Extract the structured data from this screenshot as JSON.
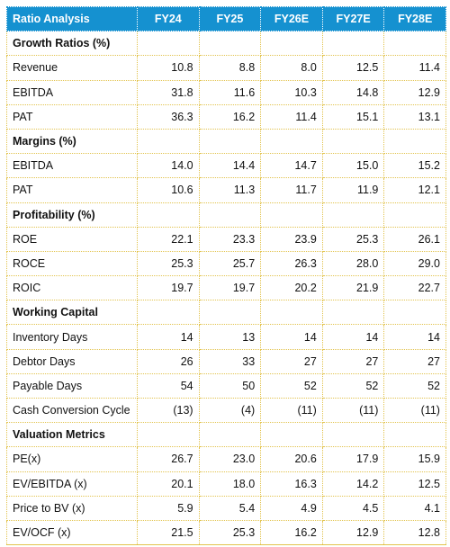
{
  "table": {
    "title": "Ratio Analysis",
    "columns": [
      "FY24",
      "FY25",
      "FY26E",
      "FY27E",
      "FY28E"
    ],
    "rows": [
      {
        "type": "section",
        "label": "Growth Ratios (%)"
      },
      {
        "type": "data",
        "label": "Revenue",
        "values": [
          "10.8",
          "8.8",
          "8.0",
          "12.5",
          "11.4"
        ]
      },
      {
        "type": "data",
        "label": "EBITDA",
        "values": [
          "31.8",
          "11.6",
          "10.3",
          "14.8",
          "12.9"
        ]
      },
      {
        "type": "data",
        "label": "PAT",
        "values": [
          "36.3",
          "16.2",
          "11.4",
          "15.1",
          "13.1"
        ]
      },
      {
        "type": "section",
        "label": "Margins (%)"
      },
      {
        "type": "data",
        "label": "EBITDA",
        "values": [
          "14.0",
          "14.4",
          "14.7",
          "15.0",
          "15.2"
        ]
      },
      {
        "type": "data",
        "label": "PAT",
        "values": [
          "10.6",
          "11.3",
          "11.7",
          "11.9",
          "12.1"
        ]
      },
      {
        "type": "section",
        "label": "Profitability (%)"
      },
      {
        "type": "data",
        "label": "ROE",
        "values": [
          "22.1",
          "23.3",
          "23.9",
          "25.3",
          "26.1"
        ]
      },
      {
        "type": "data",
        "label": "ROCE",
        "values": [
          "25.3",
          "25.7",
          "26.3",
          "28.0",
          "29.0"
        ]
      },
      {
        "type": "data",
        "label": "ROIC",
        "values": [
          "19.7",
          "19.7",
          "20.2",
          "21.9",
          "22.7"
        ]
      },
      {
        "type": "section",
        "label": "Working Capital"
      },
      {
        "type": "data",
        "label": "Inventory Days",
        "values": [
          "14",
          "13",
          "14",
          "14",
          "14"
        ]
      },
      {
        "type": "data",
        "label": "Debtor Days",
        "values": [
          "26",
          "33",
          "27",
          "27",
          "27"
        ]
      },
      {
        "type": "data",
        "label": "Payable Days",
        "values": [
          "54",
          "50",
          "52",
          "52",
          "52"
        ]
      },
      {
        "type": "data",
        "label": "Cash Conversion Cycle",
        "values": [
          "(13)",
          "(4)",
          "(11)",
          "(11)",
          "(11)"
        ]
      },
      {
        "type": "section",
        "label": "Valuation Metrics"
      },
      {
        "type": "data",
        "label": "PE(x)",
        "values": [
          "26.7",
          "23.0",
          "20.6",
          "17.9",
          "15.9"
        ]
      },
      {
        "type": "data",
        "label": "EV/EBITDA (x)",
        "values": [
          "20.1",
          "18.0",
          "16.3",
          "14.2",
          "12.5"
        ]
      },
      {
        "type": "data",
        "label": "Price to BV (x)",
        "values": [
          "5.9",
          "5.4",
          "4.9",
          "4.5",
          "4.1"
        ]
      },
      {
        "type": "data",
        "label": "EV/OCF (x)",
        "values": [
          "21.5",
          "25.3",
          "16.2",
          "12.9",
          "12.8"
        ]
      }
    ]
  },
  "colors": {
    "header_bg": "#1591d0",
    "header_text": "#ffffff",
    "grid": "#e2c34d"
  }
}
